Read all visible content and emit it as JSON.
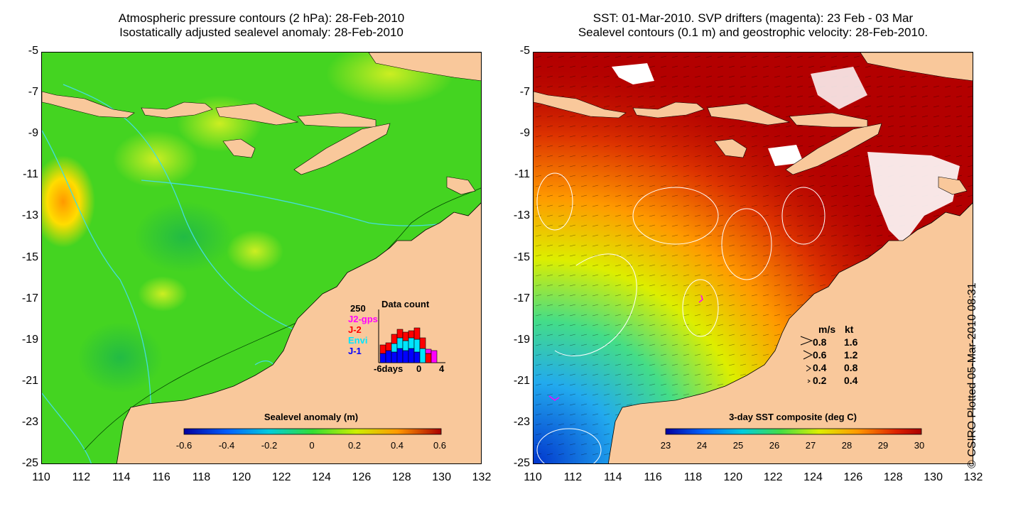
{
  "left_panel": {
    "title_line1": "Atmospheric pressure contours (2 hPa): 28-Feb-2010",
    "title_line2": "Isostatically adjusted sealevel anomaly: 28-Feb-2010",
    "colorbar": {
      "title": "Sealevel anomaly (m)",
      "ticks": [
        "-0.6",
        "-0.4",
        "-0.2",
        "0",
        "0.2",
        "0.4",
        "0.6"
      ]
    },
    "inset": {
      "title": "Data count",
      "ymax": "250",
      "legend": [
        {
          "label": "J2-gps",
          "color": "#ff00ff"
        },
        {
          "label": "J-2",
          "color": "#ff0000"
        },
        {
          "label": "Envi",
          "color": "#00e5ff"
        },
        {
          "label": "J-1",
          "color": "#0000ff"
        }
      ],
      "xticks": [
        "-6days",
        "0",
        "4"
      ]
    }
  },
  "right_panel": {
    "title_line1": "SST: 01-Mar-2010. SVP drifters (magenta): 23 Feb - 03 Mar",
    "title_line2": "Sealevel contours (0.1 m) and geostrophic velocity: 28-Feb-2010.",
    "colorbar": {
      "title": "3-day SST composite (deg C)",
      "ticks": [
        "23",
        "24",
        "25",
        "26",
        "27",
        "28",
        "29",
        "30"
      ]
    },
    "velocity_key": {
      "header_ms": "m/s",
      "header_kt": "kt",
      "rows": [
        {
          "ms": "0.8",
          "kt": "1.6"
        },
        {
          "ms": "0.6",
          "kt": "1.2"
        },
        {
          "ms": "0.4",
          "kt": "0.8"
        },
        {
          "ms": "0.2",
          "kt": "0.4"
        }
      ]
    }
  },
  "axes": {
    "lat_labels": [
      "-5",
      "-7",
      "-9",
      "-11",
      "-13",
      "-15",
      "-17",
      "-19",
      "-21",
      "-23",
      "-25"
    ],
    "lon_labels": [
      "110",
      "112",
      "114",
      "116",
      "118",
      "120",
      "122",
      "124",
      "126",
      "128",
      "130",
      "132"
    ]
  },
  "credit": "© CSIRO Plotted 05-Mar-2010 08:31",
  "colors": {
    "land": "#f9c89b",
    "sla_background": "#44d421",
    "sst_background": "#b30000",
    "contour_cyan": "#44dddd"
  }
}
